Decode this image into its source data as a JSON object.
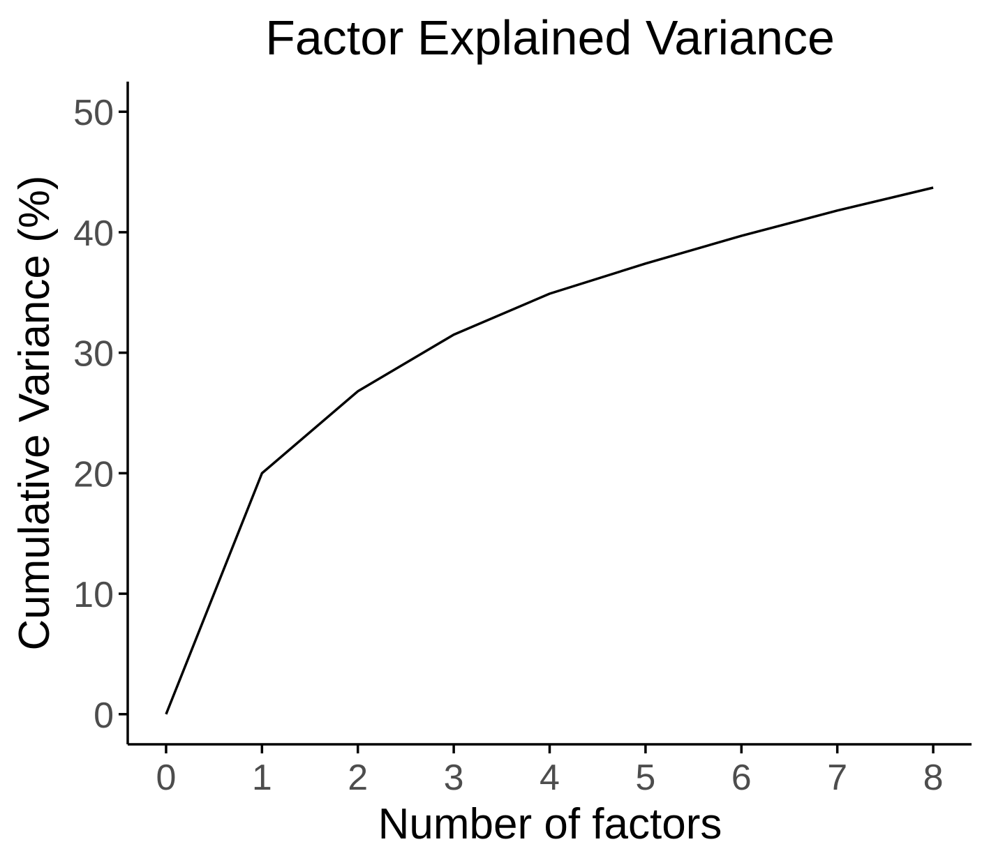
{
  "chart_data": {
    "type": "line",
    "title": "Factor Explained Variance",
    "xlabel": "Number of factors",
    "ylabel": "Cumulative Variance (%)",
    "x": [
      0,
      1,
      2,
      3,
      4,
      5,
      6,
      7,
      8
    ],
    "series": [
      {
        "values": [
          0,
          20.0,
          26.8,
          31.5,
          34.9,
          37.4,
          39.7,
          41.8,
          43.7
        ],
        "color": "#000000"
      }
    ],
    "xlim": [
      -0.4,
      8.4
    ],
    "ylim": [
      -2.5,
      52.5
    ],
    "xticks": [
      0,
      1,
      2,
      3,
      4,
      5,
      6,
      7,
      8
    ],
    "yticks": [
      0,
      10,
      20,
      30,
      40,
      50
    ],
    "grid": false,
    "legend": "none"
  }
}
